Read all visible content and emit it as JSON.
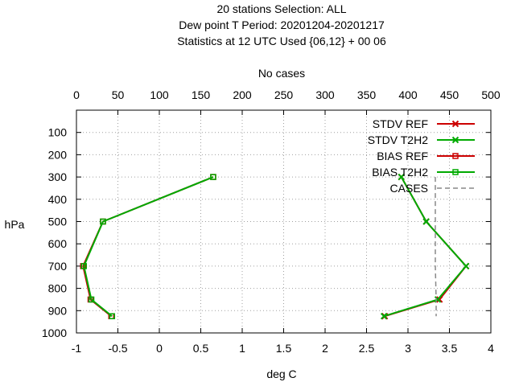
{
  "chart_data": {
    "type": "line",
    "title_lines": [
      "20 stations Selection: ALL",
      "Dew point T  Period: 20201204-20201217",
      "Statistics at 12 UTC  Used {06,12} + 00 06"
    ],
    "xlabel": "deg C",
    "ylabel": "hPa",
    "x2label": "No cases",
    "xlim": [
      -1,
      4
    ],
    "x_ticks": [
      "-1",
      "-0.5",
      "0",
      "0.5",
      "1",
      "1.5",
      "2",
      "2.5",
      "3",
      "3.5",
      "4"
    ],
    "ylim": [
      1000,
      0
    ],
    "y_ticks": [
      "100",
      "200",
      "300",
      "400",
      "500",
      "600",
      "700",
      "800",
      "900",
      "1000"
    ],
    "x2lim": [
      0,
      500
    ],
    "x2_ticks": [
      "0",
      "50",
      "100",
      "150",
      "200",
      "250",
      "300",
      "350",
      "400",
      "450",
      "500"
    ],
    "grid": true,
    "legend_position": "top-right",
    "series": [
      {
        "name": "STDV REF",
        "color": "#cc0000",
        "marker": "x",
        "axis": "x",
        "points": [
          [
            2.92,
            300
          ],
          [
            3.22,
            500
          ],
          [
            3.7,
            700
          ],
          [
            3.38,
            850
          ],
          [
            2.72,
            925
          ]
        ]
      },
      {
        "name": "STDV T2H2",
        "color": "#00aa00",
        "marker": "x",
        "axis": "x",
        "points": [
          [
            2.92,
            300
          ],
          [
            3.22,
            500
          ],
          [
            3.7,
            700
          ],
          [
            3.36,
            850
          ],
          [
            2.71,
            925
          ]
        ]
      },
      {
        "name": "BIAS REF",
        "color": "#cc0000",
        "marker": "square",
        "axis": "x",
        "points": [
          [
            0.65,
            300
          ],
          [
            -0.68,
            500
          ],
          [
            -0.92,
            700
          ],
          [
            -0.83,
            850
          ],
          [
            -0.58,
            925
          ]
        ]
      },
      {
        "name": "BIAS T2H2",
        "color": "#00aa00",
        "marker": "square",
        "axis": "x",
        "points": [
          [
            0.65,
            300
          ],
          [
            -0.68,
            500
          ],
          [
            -0.91,
            700
          ],
          [
            -0.82,
            850
          ],
          [
            -0.57,
            925
          ]
        ]
      },
      {
        "name": "CASES",
        "color": "#888888",
        "marker": "none",
        "dashed": true,
        "axis": "x2",
        "points": [
          [
            433,
            300
          ],
          [
            433,
            500
          ],
          [
            433,
            700
          ],
          [
            434,
            850
          ],
          [
            434,
            925
          ]
        ]
      }
    ]
  }
}
